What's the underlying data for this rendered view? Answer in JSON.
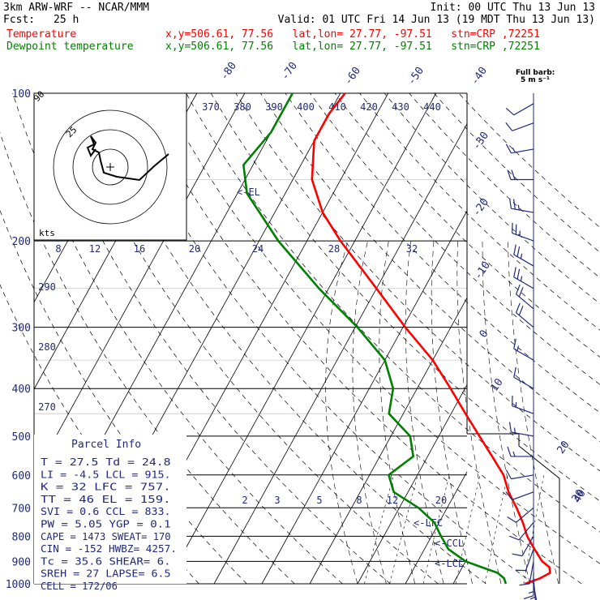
{
  "header": {
    "model": "3km ARW-WRF -- NCAR/MMM",
    "init": "Init: 00 UTC Thu 13 Jun 13",
    "fcst_label": "Fcst:",
    "fcst_value": "25 h",
    "valid": "Valid: 01 UTC Fri 14 Jun 13 (19 MDT Thu 13 Jun 13)",
    "temp_label": "Temperature",
    "dew_label": "Dewpoint temperature",
    "loc_line": "x,y=506.61, 77.56   lat,lon= 27.77, -97.51   stn=CRP ,72251"
  },
  "barb_note": [
    "Full barb:",
    "5 m s⁻¹"
  ],
  "colors": {
    "temperature": "#ff0000",
    "dewpoint": "#008000",
    "axes": "#000000",
    "labels": "#1f2a7a",
    "header_text": "#000000"
  },
  "el_label": "<-EL",
  "lfc_label": "<-LFC",
  "ccl_label": "<-CCL",
  "lcl_label": "<-LCL",
  "hodograph": {
    "kts_label": "kts",
    "ring_label": "25",
    "corner_label": "90"
  },
  "parcel_info": {
    "title": "Parcel Info",
    "rows": [
      "T  =   27.5 Td  = 24.8",
      "LI =   -4.5 LCL = 915.",
      "K  =     32 LFC = 757.",
      "TT =     46 EL  = 159.",
      "SVI =   0.6 CCL = 833.",
      "PW =   5.05 YGP =  0.1",
      "CAPE = 1473 SWEAT= 170",
      "CIN =  -152 HWBZ= 4257.",
      "Tc =   35.6 SHEAR=  6.",
      "SREH =   27 LAPSE= 6.5",
      "CELL = 172/06"
    ]
  },
  "chart_data": {
    "type": "line",
    "title": "",
    "xlabel": "",
    "ylabel": "",
    "pressure_levels": [
      100,
      200,
      300,
      400,
      500,
      600,
      700,
      800,
      900,
      1000
    ],
    "pressure_tick_labels": [
      "100",
      "200",
      "300",
      "400",
      "500",
      "600",
      "700",
      "800",
      "900",
      "1000"
    ],
    "top_temperature_labels": [
      "-80",
      "-70",
      "-60",
      "-50",
      "-40"
    ],
    "right_temperature_labels": [
      "-30",
      "-20",
      "-10",
      "0",
      "10",
      "20",
      "30",
      "40"
    ],
    "theta_labels": [
      "370",
      "380",
      "390",
      "400",
      "410",
      "420",
      "430",
      "440"
    ],
    "theta_side_labels": [
      "290",
      "280",
      "270"
    ],
    "mixing_ratio_upper_labels": [
      "8",
      "12",
      "16",
      "20",
      "24",
      "28",
      "32"
    ],
    "mixing_ratio_lower_labels": [
      "2",
      "3",
      "5",
      "8",
      "12",
      "20"
    ],
    "series": [
      {
        "name": "Temperature",
        "points": [
          [
            1000,
            25.0
          ],
          [
            975,
            27.5
          ],
          [
            950,
            29.0
          ],
          [
            925,
            28.2
          ],
          [
            900,
            26.0
          ],
          [
            850,
            23.0
          ],
          [
            800,
            20.0
          ],
          [
            750,
            17.5
          ],
          [
            700,
            14.5
          ],
          [
            650,
            11.0
          ],
          [
            600,
            8.0
          ],
          [
            550,
            3.5
          ],
          [
            500,
            -1.5
          ],
          [
            450,
            -7.0
          ],
          [
            400,
            -13.0
          ],
          [
            350,
            -20.0
          ],
          [
            300,
            -29.5
          ],
          [
            250,
            -40.0
          ],
          [
            200,
            -53.0
          ],
          [
            175,
            -60.0
          ],
          [
            150,
            -66.0
          ],
          [
            125,
            -70.0
          ],
          [
            110,
            -70.0
          ],
          [
            100,
            -69.0
          ]
        ]
      },
      {
        "name": "Dewpoint temperature",
        "points": [
          [
            1000,
            21.0
          ],
          [
            975,
            20.0
          ],
          [
            950,
            18.0
          ],
          [
            925,
            14.0
          ],
          [
            900,
            10.0
          ],
          [
            850,
            5.0
          ],
          [
            800,
            2.0
          ],
          [
            750,
            -1.0
          ],
          [
            700,
            -6.0
          ],
          [
            650,
            -13.0
          ],
          [
            600,
            -16.0
          ],
          [
            550,
            -13.0
          ],
          [
            500,
            -16.0
          ],
          [
            450,
            -23.0
          ],
          [
            400,
            -25.0
          ],
          [
            350,
            -30.0
          ],
          [
            300,
            -39.5
          ],
          [
            250,
            -52.0
          ],
          [
            200,
            -66.0
          ],
          [
            160,
            -78.0
          ],
          [
            140,
            -82.0
          ],
          [
            120,
            -80.0
          ],
          [
            100,
            -80.0
          ]
        ]
      }
    ],
    "wind_barbs": [
      {
        "p": 1000,
        "dir": 170,
        "spd": 10
      },
      {
        "p": 975,
        "dir": 175,
        "spd": 15
      },
      {
        "p": 950,
        "dir": 180,
        "spd": 15
      },
      {
        "p": 900,
        "dir": 190,
        "spd": 10
      },
      {
        "p": 850,
        "dir": 200,
        "spd": 10
      },
      {
        "p": 800,
        "dir": 210,
        "spd": 10
      },
      {
        "p": 750,
        "dir": 220,
        "spd": 10
      },
      {
        "p": 700,
        "dir": 230,
        "spd": 10
      },
      {
        "p": 650,
        "dir": 250,
        "spd": 10
      },
      {
        "p": 600,
        "dir": 260,
        "spd": 10
      },
      {
        "p": 550,
        "dir": 270,
        "spd": 15
      },
      {
        "p": 500,
        "dir": 280,
        "spd": 15
      },
      {
        "p": 450,
        "dir": 290,
        "spd": 15
      },
      {
        "p": 400,
        "dir": 300,
        "spd": 10
      },
      {
        "p": 350,
        "dir": 300,
        "spd": 15
      },
      {
        "p": 300,
        "dir": 310,
        "spd": 20
      },
      {
        "p": 275,
        "dir": 310,
        "spd": 20
      },
      {
        "p": 250,
        "dir": 300,
        "spd": 25
      },
      {
        "p": 225,
        "dir": 300,
        "spd": 25
      },
      {
        "p": 200,
        "dir": 290,
        "spd": 25
      },
      {
        "p": 175,
        "dir": 280,
        "spd": 25
      },
      {
        "p": 150,
        "dir": 270,
        "spd": 20
      },
      {
        "p": 130,
        "dir": 260,
        "spd": 15
      },
      {
        "p": 115,
        "dir": 250,
        "spd": 10
      },
      {
        "p": 105,
        "dir": 240,
        "spd": 10
      }
    ],
    "hodograph_points": [
      [
        0,
        0
      ],
      [
        -2,
        3
      ],
      [
        -3,
        6
      ],
      [
        -2,
        9
      ],
      [
        0,
        11
      ],
      [
        2,
        13
      ],
      [
        -1,
        15
      ],
      [
        -4,
        16
      ],
      [
        -1,
        18
      ],
      [
        -3,
        19
      ]
    ]
  }
}
